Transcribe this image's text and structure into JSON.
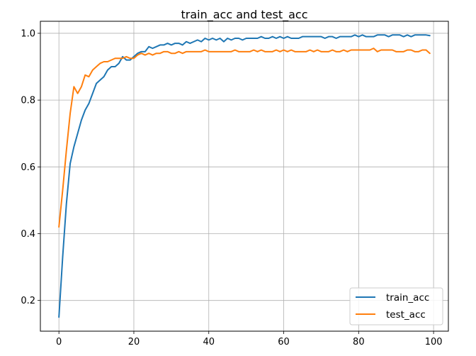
{
  "chart_data": {
    "type": "line",
    "title": "train_acc and test_acc",
    "xlabel": "",
    "ylabel": "",
    "xlim": [
      -4.95,
      103.95
    ],
    "ylim": [
      0.108,
      1.036
    ],
    "xticks": [
      0,
      20,
      40,
      60,
      80,
      100
    ],
    "yticks": [
      0.2,
      0.4,
      0.6,
      0.8,
      1.0
    ],
    "xtick_labels": [
      "0",
      "20",
      "40",
      "60",
      "80",
      "100"
    ],
    "ytick_labels": [
      "0.2",
      "0.4",
      "0.6",
      "0.8",
      "1.0"
    ],
    "grid": true,
    "legend_position": "lower-right",
    "series": [
      {
        "name": "train_acc",
        "color": "#1f77b4",
        "values": [
          0.15,
          0.33,
          0.49,
          0.61,
          0.66,
          0.7,
          0.74,
          0.77,
          0.79,
          0.82,
          0.85,
          0.86,
          0.87,
          0.89,
          0.9,
          0.9,
          0.91,
          0.93,
          0.92,
          0.92,
          0.93,
          0.94,
          0.945,
          0.945,
          0.96,
          0.955,
          0.96,
          0.965,
          0.965,
          0.97,
          0.965,
          0.97,
          0.97,
          0.965,
          0.975,
          0.97,
          0.975,
          0.98,
          0.975,
          0.985,
          0.98,
          0.985,
          0.98,
          0.985,
          0.975,
          0.985,
          0.98,
          0.985,
          0.985,
          0.98,
          0.985,
          0.985,
          0.985,
          0.985,
          0.99,
          0.985,
          0.985,
          0.99,
          0.985,
          0.99,
          0.985,
          0.99,
          0.985,
          0.985,
          0.985,
          0.99,
          0.99,
          0.99,
          0.99,
          0.99,
          0.99,
          0.985,
          0.99,
          0.99,
          0.985,
          0.99,
          0.99,
          0.99,
          0.99,
          0.995,
          0.99,
          0.995,
          0.99,
          0.99,
          0.99,
          0.995,
          0.995,
          0.995,
          0.99,
          0.995,
          0.995,
          0.995,
          0.99,
          0.995,
          0.99,
          0.995,
          0.995,
          0.995,
          0.995,
          0.993
        ]
      },
      {
        "name": "test_acc",
        "color": "#ff7f0e",
        "values": [
          0.42,
          0.53,
          0.65,
          0.76,
          0.84,
          0.82,
          0.84,
          0.875,
          0.87,
          0.89,
          0.9,
          0.91,
          0.915,
          0.915,
          0.92,
          0.925,
          0.925,
          0.925,
          0.93,
          0.925,
          0.925,
          0.935,
          0.94,
          0.935,
          0.94,
          0.935,
          0.94,
          0.94,
          0.945,
          0.945,
          0.94,
          0.94,
          0.945,
          0.94,
          0.945,
          0.945,
          0.945,
          0.945,
          0.945,
          0.95,
          0.945,
          0.945,
          0.945,
          0.945,
          0.945,
          0.945,
          0.945,
          0.95,
          0.945,
          0.945,
          0.945,
          0.945,
          0.95,
          0.945,
          0.95,
          0.945,
          0.945,
          0.945,
          0.95,
          0.945,
          0.95,
          0.945,
          0.95,
          0.945,
          0.945,
          0.945,
          0.945,
          0.95,
          0.945,
          0.95,
          0.945,
          0.945,
          0.945,
          0.95,
          0.945,
          0.945,
          0.95,
          0.945,
          0.95,
          0.95,
          0.95,
          0.95,
          0.95,
          0.95,
          0.955,
          0.945,
          0.95,
          0.95,
          0.95,
          0.95,
          0.945,
          0.945,
          0.945,
          0.95,
          0.95,
          0.945,
          0.945,
          0.95,
          0.95,
          0.94
        ]
      }
    ]
  }
}
